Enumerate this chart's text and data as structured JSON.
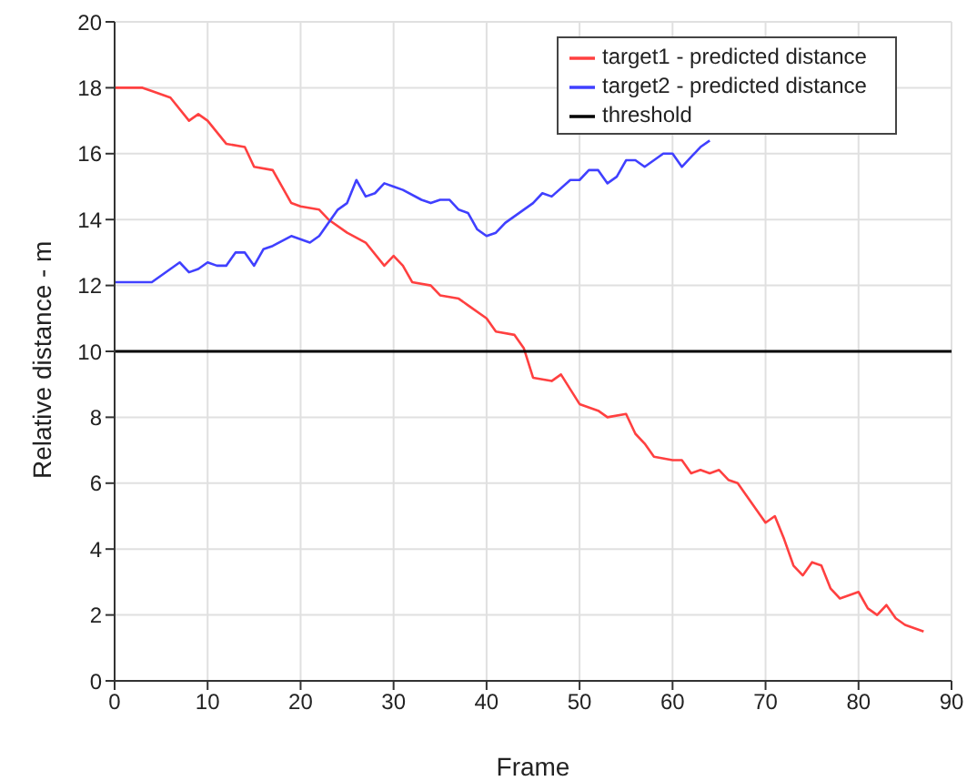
{
  "chart_data": {
    "type": "line",
    "xlabel": "Frame",
    "ylabel": "Relative distance - m",
    "xlim": [
      0,
      90
    ],
    "xticks": [
      0,
      10,
      20,
      30,
      40,
      50,
      60,
      70,
      80,
      90
    ],
    "ylim": [
      0,
      20
    ],
    "yticks": [
      0,
      2,
      4,
      6,
      8,
      10,
      12,
      14,
      16,
      18,
      20
    ],
    "grid": true,
    "legend": "top right",
    "marker": "none",
    "line_style": "solid",
    "series": [
      {
        "name": "target1 - predicted distance",
        "color": "#ff4040",
        "x": [
          0,
          3,
          4,
          6,
          8,
          9,
          10,
          12,
          14,
          15,
          17,
          19,
          20,
          22,
          23,
          25,
          27,
          29,
          30,
          31,
          32,
          34,
          35,
          37,
          38,
          40,
          41,
          43,
          44,
          45,
          47,
          48,
          50,
          52,
          53,
          55,
          56,
          57,
          58,
          60,
          61,
          62,
          63,
          64,
          65,
          66,
          67,
          68,
          70,
          71,
          72,
          73,
          74,
          75,
          76,
          77,
          78,
          80,
          81,
          82,
          83,
          84,
          85,
          87
        ],
        "values": [
          18,
          18,
          17.9,
          17.7,
          17.0,
          17.2,
          17.0,
          16.3,
          16.2,
          15.6,
          15.5,
          14.5,
          14.4,
          14.3,
          14.0,
          13.6,
          13.3,
          12.6,
          12.9,
          12.6,
          12.1,
          12.0,
          11.7,
          11.6,
          11.4,
          11.0,
          10.6,
          10.5,
          10.1,
          9.2,
          9.1,
          9.3,
          8.4,
          8.2,
          8.0,
          8.1,
          7.5,
          7.2,
          6.8,
          6.7,
          6.7,
          6.3,
          6.4,
          6.3,
          6.4,
          6.1,
          6.0,
          5.6,
          4.8,
          5.0,
          4.3,
          3.5,
          3.2,
          3.6,
          3.5,
          2.8,
          2.5,
          2.7,
          2.2,
          2.0,
          2.3,
          1.9,
          1.7,
          1.5
        ]
      },
      {
        "name": "target2 - predicted distance",
        "color": "#4040ff",
        "x": [
          0,
          4,
          6,
          7,
          8,
          9,
          10,
          11,
          12,
          13,
          14,
          15,
          16,
          17,
          19,
          21,
          22,
          24,
          25,
          26,
          27,
          28,
          29,
          30,
          31,
          33,
          34,
          35,
          36,
          37,
          38,
          39,
          40,
          41,
          42,
          44,
          45,
          46,
          47,
          49,
          50,
          51,
          52,
          53,
          54,
          55,
          56,
          57,
          58,
          59,
          60,
          61,
          62,
          63,
          64
        ],
        "values": [
          12.1,
          12.1,
          12.5,
          12.7,
          12.4,
          12.5,
          12.7,
          12.6,
          12.6,
          13.0,
          13.0,
          12.6,
          13.1,
          13.2,
          13.5,
          13.3,
          13.5,
          14.3,
          14.5,
          15.2,
          14.7,
          14.8,
          15.1,
          15.0,
          14.9,
          14.6,
          14.5,
          14.6,
          14.6,
          14.3,
          14.2,
          13.7,
          13.5,
          13.6,
          13.9,
          14.3,
          14.5,
          14.8,
          14.7,
          15.2,
          15.2,
          15.5,
          15.5,
          15.1,
          15.3,
          15.8,
          15.8,
          15.6,
          15.8,
          16.0,
          16.0,
          15.6,
          15.9,
          16.2,
          16.4
        ]
      },
      {
        "name": "threshold",
        "color": "#000000",
        "x": [
          0,
          90
        ],
        "values": [
          10,
          10
        ]
      }
    ]
  }
}
